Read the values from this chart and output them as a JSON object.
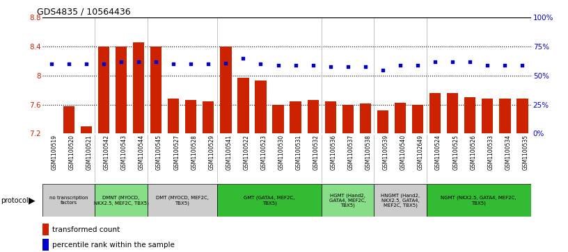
{
  "title": "GDS4835 / 10564436",
  "samples": [
    "GSM1100519",
    "GSM1100520",
    "GSM1100521",
    "GSM1100542",
    "GSM1100543",
    "GSM1100544",
    "GSM1100545",
    "GSM1100527",
    "GSM1100528",
    "GSM1100529",
    "GSM1100541",
    "GSM1100522",
    "GSM1100523",
    "GSM1100530",
    "GSM1100531",
    "GSM1100532",
    "GSM1100536",
    "GSM1100537",
    "GSM1100538",
    "GSM1100539",
    "GSM1100540",
    "GSM1102649",
    "GSM1100524",
    "GSM1100525",
    "GSM1100526",
    "GSM1100533",
    "GSM1100534",
    "GSM1100535"
  ],
  "bar_values": [
    7.2,
    7.58,
    7.3,
    8.4,
    8.4,
    8.46,
    8.4,
    7.68,
    7.66,
    7.64,
    8.4,
    7.97,
    7.93,
    7.6,
    7.64,
    7.66,
    7.64,
    7.6,
    7.62,
    7.52,
    7.63,
    7.6,
    7.76,
    7.76,
    7.7,
    7.68,
    7.68,
    7.68
  ],
  "percentile_values": [
    60,
    60,
    60,
    60,
    62,
    62,
    62,
    60,
    60,
    60,
    61,
    65,
    60,
    59,
    59,
    59,
    58,
    58,
    58,
    55,
    59,
    59,
    62,
    62,
    62,
    59,
    59,
    59
  ],
  "ylim": [
    7.2,
    8.8
  ],
  "yticks_left": [
    7.2,
    7.6,
    8.0,
    8.4,
    8.8
  ],
  "yticks_right": [
    0,
    25,
    50,
    75,
    100
  ],
  "bar_color": "#cc2200",
  "dot_color": "#0000cc",
  "protocol_groups": [
    {
      "label": "no transcription\nfactors",
      "start": 0,
      "end": 3,
      "color": "#cccccc"
    },
    {
      "label": "DMNT (MYOCD,\nNKX2.5, MEF2C, TBX5)",
      "start": 3,
      "end": 6,
      "color": "#88dd88"
    },
    {
      "label": "DMT (MYOCD, MEF2C,\nTBX5)",
      "start": 6,
      "end": 10,
      "color": "#cccccc"
    },
    {
      "label": "GMT (GATA4, MEF2C,\nTBX5)",
      "start": 10,
      "end": 16,
      "color": "#33bb33"
    },
    {
      "label": "HGMT (Hand2,\nGATA4, MEF2C,\nTBX5)",
      "start": 16,
      "end": 19,
      "color": "#88dd88"
    },
    {
      "label": "HNGMT (Hand2,\nNKX2.5, GATA4,\nMEF2C, TBX5)",
      "start": 19,
      "end": 22,
      "color": "#cccccc"
    },
    {
      "label": "NGMT (NKX2.5, GATA4, MEF2C,\nTBX5)",
      "start": 22,
      "end": 28,
      "color": "#33bb33"
    }
  ],
  "ylabel_left_color": "#cc2200",
  "ylabel_right_color": "#0000cc"
}
